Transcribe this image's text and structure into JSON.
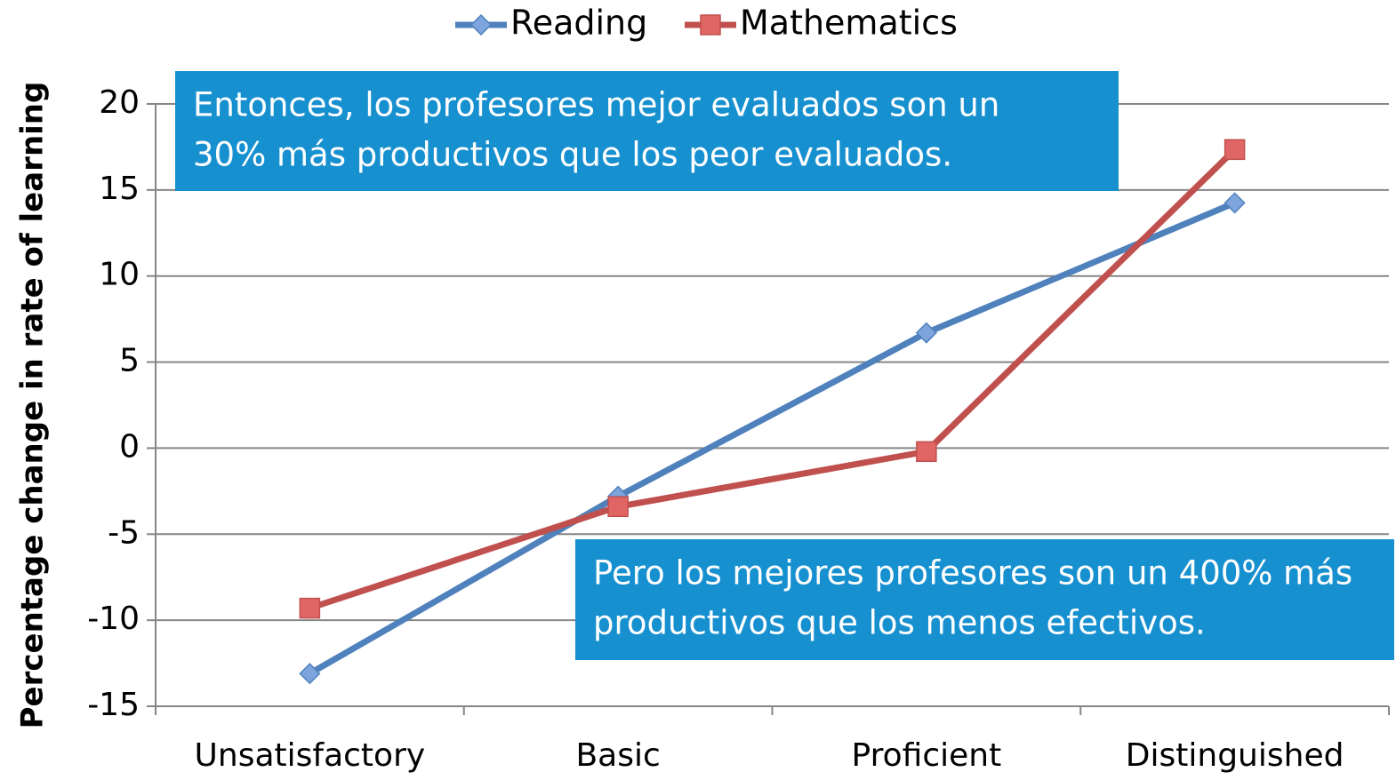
{
  "chart_data": {
    "type": "line",
    "y_label": "Percentage change in rate of learning",
    "categories": [
      "Unsatisfactory",
      "Basic",
      "Proficient",
      "Distinguished"
    ],
    "series": [
      {
        "name": "Reading",
        "color": "#4f81bd",
        "marker": "diamond",
        "values": [
          -13.1,
          -2.8,
          6.7,
          14.25
        ]
      },
      {
        "name": "Mathematics",
        "color": "#c0504d",
        "marker": "square",
        "values": [
          -9.3,
          -3.4,
          -0.2,
          17.35
        ]
      }
    ],
    "ylim": [
      -15,
      20
    ],
    "yticks": [
      -15,
      -10,
      -5,
      0,
      5,
      10,
      15,
      20
    ],
    "grid": true,
    "legend": "top",
    "annotations": [
      {
        "lines": [
          "Entonces, los profesores mejor evaluados son un",
          "30% más productivos que los peor evaluados."
        ],
        "color": "#1790d0"
      },
      {
        "lines": [
          "Pero los mejores profesores son un 400% más",
          "productivos que los menos efectivos."
        ],
        "color": "#1790d0"
      }
    ]
  }
}
